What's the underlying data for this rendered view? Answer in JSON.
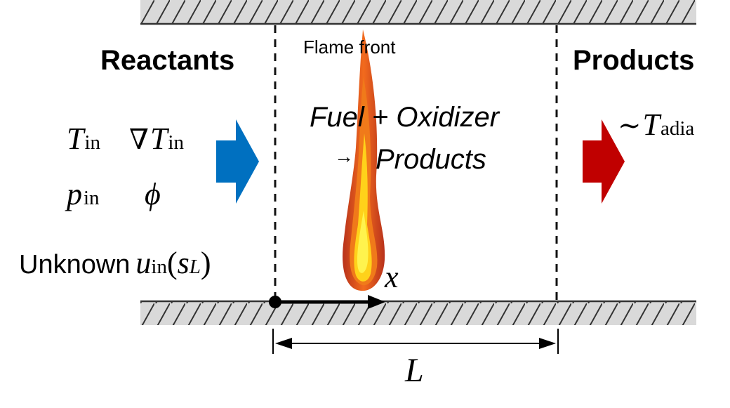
{
  "labels": {
    "reactants": "Reactants",
    "products": "Products",
    "flame_front": "Flame front",
    "reaction_line1": "Fuel + Oxidizer",
    "reaction_arrow": "→",
    "reaction_line2": "Products",
    "unknown_prefix": "Unknown"
  },
  "math": {
    "T": "T",
    "in": "in",
    "nabla": "∇",
    "p": "p",
    "phi": "ϕ",
    "u": "u",
    "open_paren": "(",
    "s": "s",
    "L_sub": "L",
    "close_paren": ")",
    "tilde": "∼",
    "adia": "adia",
    "x": "x",
    "L": "L"
  },
  "colors": {
    "reactant_arrow": "#0070c0",
    "product_arrow": "#c00000",
    "wall_fill": "#d9d9d9",
    "flame_outer": "#c0392b",
    "flame_mid": "#f07a1a",
    "flame_inner": "#ffd21a",
    "flame_core": "#fff34d"
  }
}
